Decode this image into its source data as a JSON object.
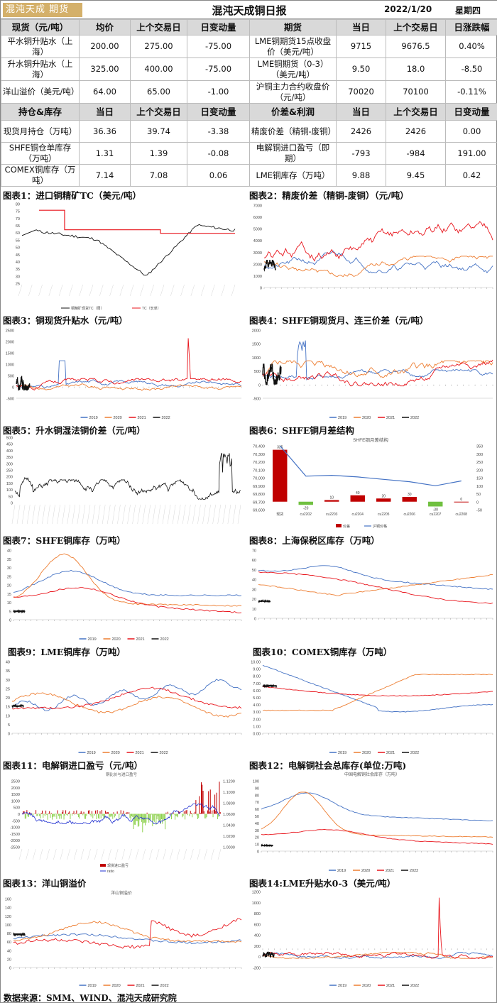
{
  "header": {
    "logo": "混沌天成 期货",
    "title": "混沌天成铜日报",
    "date": "2022/1/20",
    "weekday": "星期四"
  },
  "table1": {
    "headers": [
      "现货（元/吨）",
      "均价",
      "上个交易日",
      "日变动量",
      "期货",
      "当日",
      "上个交易日",
      "日涨跌幅"
    ],
    "rows": [
      [
        "平水铜升贴水（上海）",
        "200.00",
        "275.00",
        "-75.00",
        "LME铜期货15点收盘价（美元/吨）",
        "9715",
        "9676.5",
        "0.40%"
      ],
      [
        "升水铜升贴水（上海）",
        "325.00",
        "400.00",
        "-75.00",
        "LME铜期货（0-3）（美元/吨）",
        "9.50",
        "18.0",
        "-8.50"
      ],
      [
        "洋山溢价（美元/吨）",
        "64.00",
        "65.00",
        "-1.00",
        "沪铜主力合约收盘价（元/吨）",
        "70020",
        "70100",
        "-0.11%"
      ]
    ]
  },
  "table2": {
    "headers": [
      "持仓&库存",
      "当日",
      "上个交易日",
      "日变动量",
      "价差&利润",
      "当日",
      "上个交易日",
      "日变动量"
    ],
    "rows": [
      [
        "现货月持仓（万吨）",
        "36.36",
        "39.74",
        "-3.38",
        "精废价差（精铜-废铜）",
        "2426",
        "2426",
        "0.00"
      ],
      [
        "SHFE铜仓单库存（万吨）",
        "1.31",
        "1.39",
        "-0.08",
        "电解铜进口盈亏（即期）",
        "-793",
        "-984",
        "191.00"
      ],
      [
        "COMEX铜库存（万吨）",
        "7.14",
        "7.08",
        "0.06",
        "LME铜库存（万吨）",
        "9.88",
        "9.45",
        "0.42"
      ]
    ]
  },
  "charts": {
    "c1": {
      "caption": "图表1：进口铜精矿TC（美元/吨）",
      "legend": [
        "铜精矿现货TC（周）",
        "TC（长单）"
      ],
      "yticks": [
        "80",
        "75",
        "70",
        "65",
        "60",
        "55",
        "50",
        "45",
        "40",
        "35",
        "30",
        "25"
      ]
    },
    "c2": {
      "caption": "图表2：精废价差（精铜-废铜）（元/吨）",
      "yticks": [
        "7000",
        "6000",
        "5000",
        "4000",
        "3000",
        "2000",
        "1000",
        "0"
      ]
    },
    "c3": {
      "caption": "图表3：铜现货升贴水（元/吨）",
      "yticks": [
        "2500",
        "2000",
        "1500",
        "1000",
        "500",
        "0",
        "-500"
      ]
    },
    "c4": {
      "caption": "图表4：SHFE铜现货月、连三价差（元/吨）",
      "yticks": [
        "2000",
        "1500",
        "1000",
        "500",
        "0",
        "-500"
      ]
    },
    "c5": {
      "caption": "图表5：升水铜湿法铜价差（元/吨）",
      "yticks": [
        "500",
        "450",
        "400",
        "350",
        "300",
        "250",
        "200",
        "150",
        "100",
        "50",
        "0"
      ]
    },
    "c6": {
      "caption": "图表6：SHFE铜月差结构",
      "inner_title": "SHFE铜月差结构",
      "legend": [
        "价差",
        "沪铜价格"
      ],
      "categories": [
        "现货",
        "cu2202",
        "cu2203",
        "cu2204",
        "cu2205",
        "cu2206",
        "cu2207",
        "cu2208"
      ],
      "spreads": [
        325,
        -20,
        10,
        40,
        20,
        30,
        -30,
        0
      ],
      "prices": [
        70400,
        70020,
        70030,
        70010,
        69980,
        69950,
        69900,
        69960
      ],
      "left_ticks": [
        "70,400",
        "70,300",
        "70,200",
        "70,100",
        "70,000",
        "69,900",
        "69,800",
        "69,700",
        "69,600"
      ],
      "right_ticks": [
        "350",
        "300",
        "250",
        "200",
        "150",
        "100",
        "50",
        "0",
        "-50"
      ]
    },
    "c7": {
      "caption": "图表7：SHFE铜库存（万吨）",
      "yticks": [
        "40",
        "35",
        "30",
        "25",
        "20",
        "15",
        "10",
        "5",
        "0"
      ]
    },
    "c8": {
      "caption": "图表8：上海保税区库存（万吨）",
      "yticks": [
        "70",
        "60",
        "50",
        "40",
        "30",
        "20",
        "10",
        "0"
      ]
    },
    "c9": {
      "caption": "图表9：LME铜库存（万吨）",
      "yticks": [
        "40",
        "35",
        "30",
        "25",
        "20",
        "15",
        "10",
        "5",
        "0"
      ]
    },
    "c10": {
      "caption": "图表10：COMEX铜库存（万吨）",
      "yticks": [
        "10.00",
        "9.00",
        "8.00",
        "7.00",
        "6.00",
        "5.00",
        "4.00",
        "3.00",
        "2.00",
        "1.00",
        "0.00"
      ]
    },
    "c11": {
      "caption": "图表11：电解铜进口盈亏（元/吨）",
      "inner_title": "铜比价与进口盈亏",
      "legend": [
        "现货进口盈亏",
        "ratio"
      ],
      "yticks": [
        "2500",
        "2000",
        "1500",
        "1000",
        "500",
        "0",
        "-500",
        "-1000",
        "-1500",
        "-2000",
        "-2500"
      ],
      "rticks": [
        "1.1200",
        "1.1000",
        "1.0800",
        "1.0600",
        "1.0400",
        "1.0200",
        "1.0000"
      ]
    },
    "c12": {
      "caption": "图表12：电解铜社会总库存(单位:万吨)",
      "inner_title": "中国电解铜社会库存（万吨）",
      "yticks": [
        "100",
        "90",
        "80",
        "70",
        "60",
        "50",
        "40",
        "30",
        "20",
        "10",
        "0"
      ]
    },
    "c13": {
      "caption": "图表13：洋山铜溢价",
      "inner_title": "洋山铜溢价",
      "yticks": [
        "160",
        "140",
        "120",
        "100",
        "80",
        "60",
        "40",
        "20",
        "0"
      ]
    },
    "c14": {
      "caption": "图表14:LME升贴水0-3（美元/吨）",
      "yticks": [
        "1200",
        "1000",
        "800",
        "600",
        "400",
        "200",
        "0",
        "-200"
      ]
    }
  },
  "series_legend": [
    "2019",
    "2020",
    "2021",
    "2022"
  ],
  "colors": {
    "y2019": "#4472c4",
    "y2020": "#ed7d31",
    "y2021": "#e8141b",
    "y2022": "#111111"
  },
  "source": "数据来源：SMM、WIND、混沌天成研究院"
}
